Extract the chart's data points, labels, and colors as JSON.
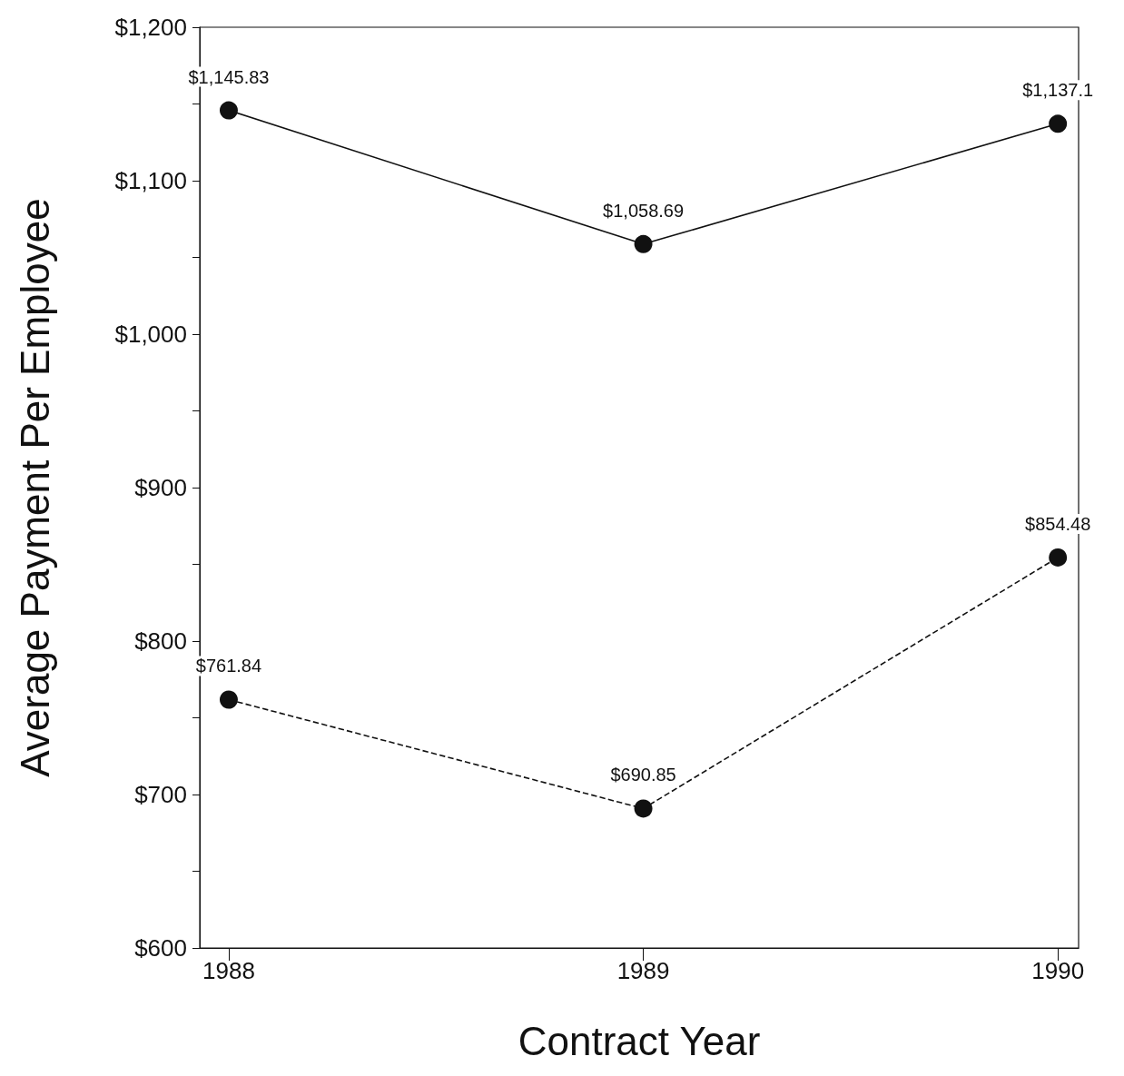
{
  "chart_data": {
    "type": "line",
    "xlabel": "Contract Year",
    "ylabel": "Average Payment Per Employee",
    "x": [
      1988,
      1989,
      1990
    ],
    "xlim": [
      1987.93,
      1990.05
    ],
    "xticks": [
      1988,
      1989,
      1990
    ],
    "ylim": [
      600,
      1200
    ],
    "yticks": [
      {
        "value": 600,
        "label": "$600"
      },
      {
        "value": 650,
        "label": null
      },
      {
        "value": 700,
        "label": "$700"
      },
      {
        "value": 750,
        "label": null
      },
      {
        "value": 800,
        "label": "$800"
      },
      {
        "value": 850,
        "label": null
      },
      {
        "value": 900,
        "label": "$900"
      },
      {
        "value": 950,
        "label": null
      },
      {
        "value": 1000,
        "label": "$1,000"
      },
      {
        "value": 1050,
        "label": null
      },
      {
        "value": 1100,
        "label": "$1,100"
      },
      {
        "value": 1150,
        "label": null
      },
      {
        "value": 1200,
        "label": "$1,200"
      }
    ],
    "series": [
      {
        "color": "#111111",
        "line_style": "solid",
        "values": [
          1145.83,
          1058.69,
          1137.1
        ],
        "value_labels": [
          "$1,145.83",
          "$1,058.69",
          "$1,137.1"
        ]
      },
      {
        "color": "#111111",
        "line_style": "dashed",
        "values": [
          761.84,
          690.85,
          854.48
        ],
        "value_labels": [
          "$761.84",
          "$690.85",
          "$854.48"
        ]
      }
    ],
    "marker": "circle",
    "grid": false
  }
}
